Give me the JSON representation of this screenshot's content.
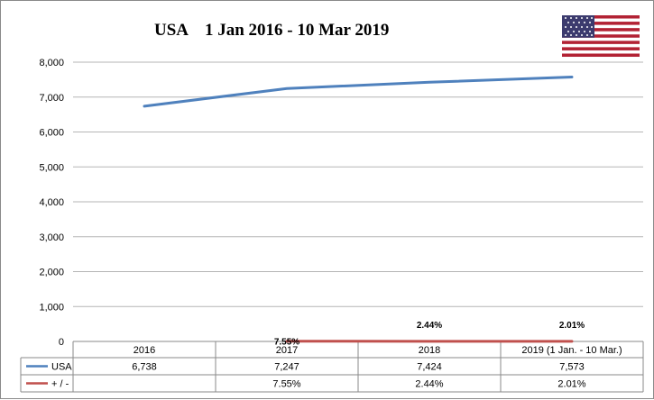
{
  "chart_data": {
    "type": "line",
    "title": "USA    1 Jan 2016 - 10 Mar 2019",
    "categories": [
      "2016",
      "2017",
      "2018",
      "2019 (1 Jan. - 10 Mar.)"
    ],
    "ylim": [
      0,
      8000
    ],
    "yticks": [
      "0",
      "1,000",
      "2,000",
      "3,000",
      "4,000",
      "5,000",
      "6,000",
      "7,000",
      "8,000"
    ],
    "grid": true,
    "series": [
      {
        "name": "USA",
        "color": "#4f81bd",
        "values": [
          6738,
          7247,
          7424,
          7573
        ],
        "table_values": [
          "6,738",
          "7,247",
          "7,424",
          "7,573"
        ]
      },
      {
        "name": "+ / -",
        "color": "#c0504d",
        "values": [
          null,
          7.55,
          2.44,
          2.01
        ],
        "table_values": [
          "",
          "7.55%",
          "2.44%",
          "2.01%"
        ],
        "data_labels": [
          "",
          "7.55%",
          "2.44%",
          "2.01%"
        ]
      }
    ],
    "legend": "data-table",
    "flag": "usa-flag-icon"
  }
}
